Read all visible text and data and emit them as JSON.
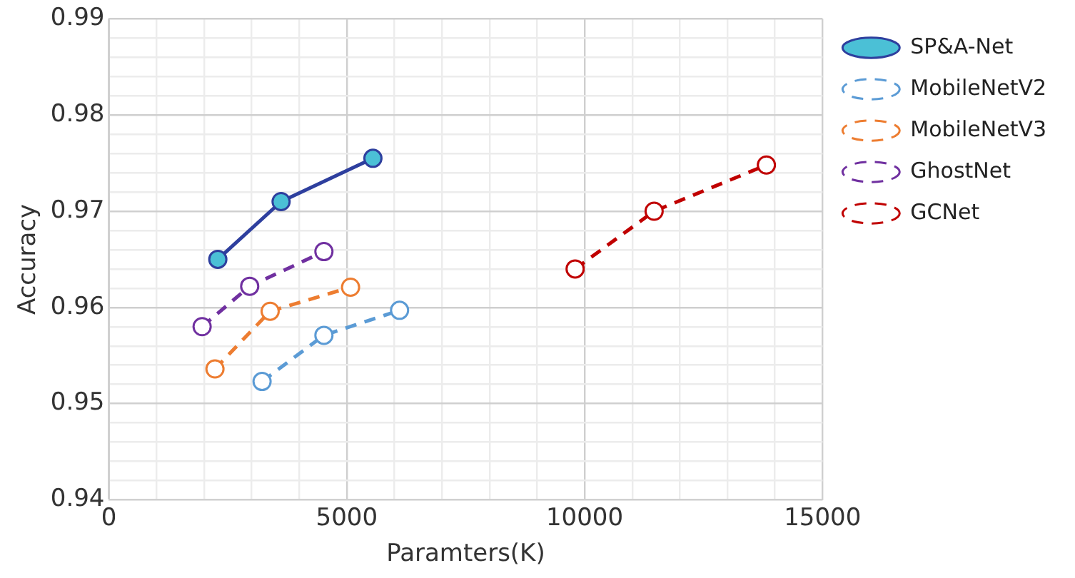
{
  "chart_data": {
    "type": "line",
    "xlabel": "Paramters(K)",
    "ylabel": "Accuracy",
    "xlim": [
      0,
      15000
    ],
    "xticks": [
      0,
      {
        "value": 1000,
        "label": null
      },
      {
        "value": 2000,
        "label": null
      },
      {
        "value": 3000,
        "label": null
      },
      {
        "value": 4000,
        "label": null
      },
      5000,
      {
        "value": 6000,
        "label": null
      },
      {
        "value": 7000,
        "label": null
      },
      {
        "value": 8000,
        "label": null
      },
      {
        "value": 9000,
        "label": null
      },
      10000,
      {
        "value": 11000,
        "label": null
      },
      {
        "value": 12000,
        "label": null
      },
      {
        "value": 13000,
        "label": null
      },
      {
        "value": 14000,
        "label": null
      },
      15000
    ],
    "ylim": [
      0.94,
      0.99
    ],
    "yticks": [
      0.94,
      {
        "value": 0.942,
        "label": null
      },
      {
        "value": 0.944,
        "label": null
      },
      {
        "value": 0.946,
        "label": null
      },
      {
        "value": 0.948,
        "label": null
      },
      0.95,
      {
        "value": 0.952,
        "label": null
      },
      {
        "value": 0.954,
        "label": null
      },
      {
        "value": 0.956,
        "label": null
      },
      {
        "value": 0.958,
        "label": null
      },
      0.96,
      {
        "value": 0.962,
        "label": null
      },
      {
        "value": 0.964,
        "label": null
      },
      {
        "value": 0.966,
        "label": null
      },
      {
        "value": 0.968,
        "label": null
      },
      0.97,
      {
        "value": 0.972,
        "label": null
      },
      {
        "value": 0.974,
        "label": null
      },
      {
        "value": 0.976,
        "label": null
      },
      {
        "value": 0.978,
        "label": null
      },
      0.98,
      {
        "value": 0.982,
        "label": null
      },
      {
        "value": 0.984,
        "label": null
      },
      {
        "value": 0.986,
        "label": null
      },
      {
        "value": 0.988,
        "label": null
      },
      0.99
    ],
    "grid": true,
    "legend": "right",
    "marker": "circle",
    "series": [
      {
        "name": "SP&A-Net",
        "color": "#2e3f9e",
        "line_style": "solid",
        "x": [
          2290,
          3620,
          5550
        ],
        "values": [
          0.965,
          0.971,
          0.9755
        ]
      },
      {
        "name": "MobileNetV2",
        "color": "#5b9bd5",
        "line_style": "dashed",
        "x": [
          3220,
          4520,
          6110
        ],
        "values": [
          0.9523,
          0.9571,
          0.9597
        ]
      },
      {
        "name": "MobileNetV3",
        "color": "#ed7d31",
        "line_style": "dashed",
        "x": [
          2230,
          3390,
          5080
        ],
        "values": [
          0.9536,
          0.9596,
          0.9621
        ]
      },
      {
        "name": "GhostNet",
        "color": "#7030a0",
        "line_style": "dashed",
        "x": [
          1960,
          2960,
          4520
        ],
        "values": [
          0.958,
          0.9622,
          0.9658
        ]
      },
      {
        "name": "GCNet",
        "color": "#c00000",
        "line_style": "dashed",
        "x": [
          9800,
          11460,
          13820
        ],
        "values": [
          0.964,
          0.97,
          0.9748
        ]
      }
    ]
  }
}
